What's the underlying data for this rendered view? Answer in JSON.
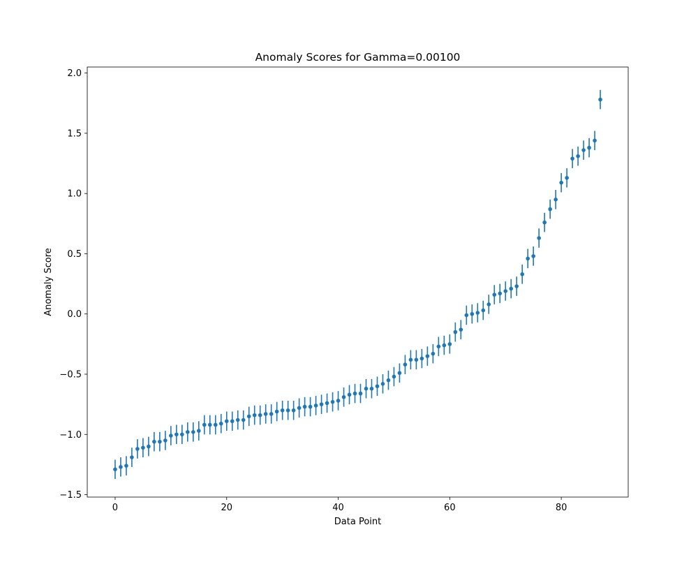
{
  "chart_data": {
    "type": "scatter",
    "title": "Anomaly Scores for Gamma=0.00100",
    "xlabel": "Data Point",
    "ylabel": "Anomaly Score",
    "xlim": [
      -5,
      92
    ],
    "ylim": [
      -1.52,
      2.05
    ],
    "xticks": [
      0,
      20,
      40,
      60,
      80
    ],
    "yticks": [
      -1.5,
      -1.0,
      -0.5,
      0.0,
      0.5,
      1.0,
      1.5,
      2.0
    ],
    "xtick_labels": [
      "0",
      "20",
      "40",
      "60",
      "80"
    ],
    "ytick_labels": [
      "−1.5",
      "−1.0",
      "−0.5",
      "0.0",
      "0.5",
      "1.0",
      "1.5",
      "2.0"
    ],
    "grid": false,
    "color": "#1f77b4",
    "series": [
      {
        "x": [
          0,
          1,
          2,
          3,
          4,
          5,
          6,
          7,
          8,
          9,
          10,
          11,
          12,
          13,
          14,
          15,
          16,
          17,
          18,
          19,
          20,
          21,
          22,
          23,
          24,
          25,
          26,
          27,
          28,
          29,
          30,
          31,
          32,
          33,
          34,
          35,
          36,
          37,
          38,
          39,
          40,
          41,
          42,
          43,
          44,
          45,
          46,
          47,
          48,
          49,
          50,
          51,
          52,
          53,
          54,
          55,
          56,
          57,
          58,
          59,
          60,
          61,
          62,
          63,
          64,
          65,
          66,
          67,
          68,
          69,
          70,
          71,
          72,
          73,
          74,
          75,
          76,
          77,
          78,
          79,
          80,
          81,
          82,
          83,
          84,
          85,
          86,
          87
        ],
        "y": [
          -1.29,
          -1.27,
          -1.26,
          -1.19,
          -1.12,
          -1.11,
          -1.1,
          -1.06,
          -1.06,
          -1.05,
          -1.01,
          -1.0,
          -1.0,
          -0.98,
          -0.98,
          -0.97,
          -0.92,
          -0.92,
          -0.92,
          -0.91,
          -0.89,
          -0.89,
          -0.88,
          -0.88,
          -0.85,
          -0.84,
          -0.84,
          -0.83,
          -0.83,
          -0.81,
          -0.8,
          -0.8,
          -0.8,
          -0.78,
          -0.77,
          -0.77,
          -0.76,
          -0.75,
          -0.74,
          -0.73,
          -0.72,
          -0.69,
          -0.67,
          -0.66,
          -0.66,
          -0.62,
          -0.62,
          -0.6,
          -0.58,
          -0.55,
          -0.52,
          -0.49,
          -0.42,
          -0.38,
          -0.38,
          -0.37,
          -0.35,
          -0.33,
          -0.27,
          -0.26,
          -0.25,
          -0.15,
          -0.13,
          -0.01,
          0.0,
          0.01,
          0.03,
          0.08,
          0.16,
          0.17,
          0.19,
          0.21,
          0.23,
          0.33,
          0.46,
          0.48,
          0.63,
          0.76,
          0.87,
          0.95,
          1.09,
          1.13,
          1.29,
          1.31,
          1.36,
          1.38,
          1.44,
          1.78
        ],
        "yerr": 0.08
      }
    ]
  }
}
